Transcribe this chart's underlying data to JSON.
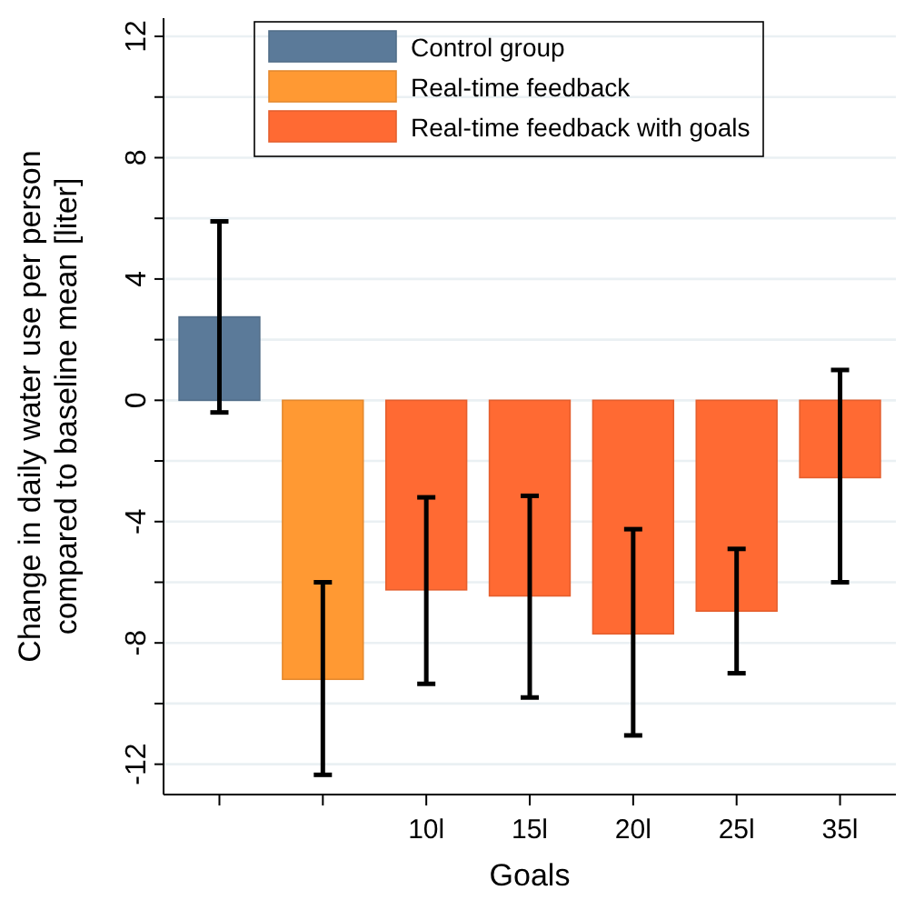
{
  "chart_data": {
    "type": "bar",
    "xlabel": "Goals",
    "ylabel": "Change in daily water use per person\ncompared to baseline mean [liter]",
    "categories": [
      null,
      null,
      "10l",
      "15l",
      "20l",
      "25l",
      "35l"
    ],
    "series": [
      {
        "name": "Control group",
        "color": "#5b7a99",
        "values": [
          2.75,
          null,
          null,
          null,
          null,
          null,
          null
        ],
        "errors": [
          [
            -0.4,
            5.9
          ],
          null,
          null,
          null,
          null,
          null,
          null
        ]
      },
      {
        "name": "Real-time feedback",
        "color": "#ff9933",
        "values": [
          null,
          -9.2,
          null,
          null,
          null,
          null,
          null
        ],
        "errors": [
          null,
          [
            -12.35,
            -6.0
          ],
          null,
          null,
          null,
          null,
          null
        ]
      },
      {
        "name": "Real-time feedback with goals",
        "color": "#ff6a33",
        "values": [
          null,
          null,
          -6.25,
          -6.45,
          -7.7,
          -6.95,
          -2.55
        ],
        "errors": [
          null,
          null,
          [
            -9.35,
            -3.2
          ],
          [
            -9.8,
            -3.15
          ],
          [
            -11.05,
            -4.25
          ],
          [
            -9.0,
            -4.9
          ],
          [
            -6.0,
            1.0
          ]
        ]
      }
    ],
    "ylim": [
      -13,
      12.6
    ],
    "yticks": [
      -12,
      {
        "value": -10,
        "label": null
      },
      -8,
      {
        "value": -6,
        "label": null
      },
      -4,
      {
        "value": -2,
        "label": null
      },
      0,
      {
        "value": 2,
        "label": null
      },
      4,
      {
        "value": 6,
        "label": null
      },
      8,
      {
        "value": 10,
        "label": null
      },
      12
    ],
    "grid": "y",
    "legend": "top"
  }
}
